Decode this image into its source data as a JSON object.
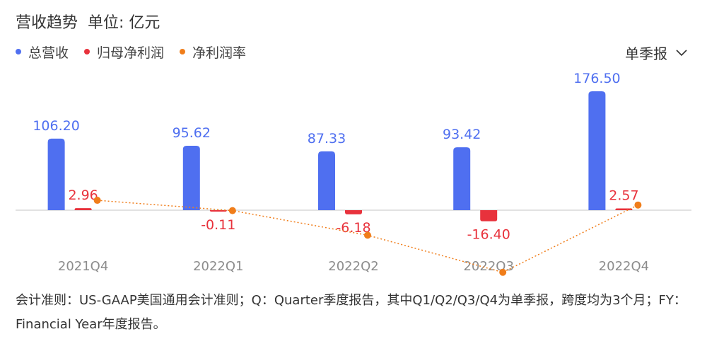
{
  "header": {
    "title": "营收趋势",
    "unit": "单位: 亿元"
  },
  "period_selector": {
    "label": "单季报",
    "icon": "chevron-down-icon"
  },
  "colors": {
    "revenue": "#4f6ff0",
    "net_profit": "#e8323c",
    "net_margin": "#f07d1a",
    "axis": "#d9d9d9",
    "tick_label": "#8c8c8c"
  },
  "chart_data": {
    "type": "bar",
    "categories": [
      "2021Q4",
      "2022Q1",
      "2022Q2",
      "2022Q3",
      "2022Q4"
    ],
    "series": [
      {
        "name": "总营收",
        "kind": "bar",
        "values": [
          106.2,
          95.62,
          87.33,
          93.42,
          176.5
        ],
        "labels": [
          "106.20",
          "95.62",
          "87.33",
          "93.42",
          "176.50"
        ]
      },
      {
        "name": "归母净利润",
        "kind": "bar",
        "values": [
          2.96,
          -0.11,
          -6.18,
          -16.4,
          2.57
        ],
        "labels": [
          "2.96",
          "-0.11",
          "-6.18",
          "-16.40",
          "2.57"
        ]
      },
      {
        "name": "净利润率",
        "kind": "line",
        "values": [
          2.79,
          -0.12,
          -7.08,
          -17.56,
          1.46
        ]
      }
    ],
    "legend": "top-left",
    "grid": false
  },
  "footnote": "会计准则：US-GAAP美国通用会计准则；Q：Quarter季度报告，其中Q1/Q2/Q3/Q4为单季报，跨度均为3个月；FY：Financial Year年度报告。"
}
